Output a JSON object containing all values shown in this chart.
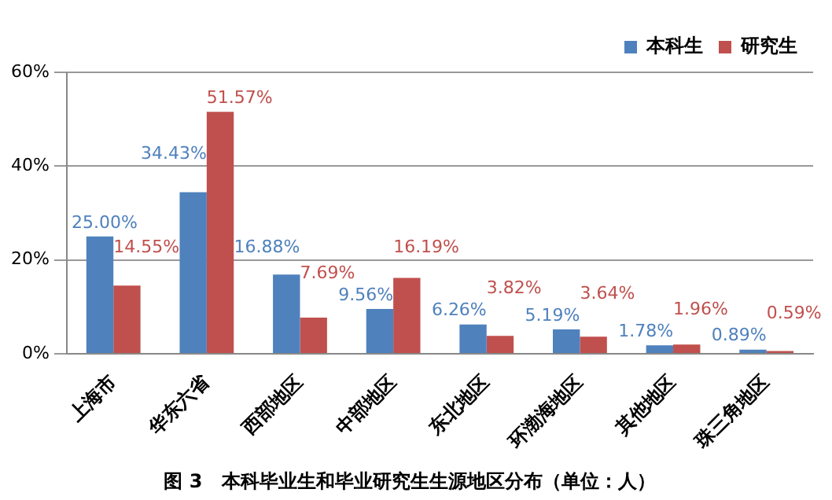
{
  "chart_data": {
    "type": "bar",
    "title": "图 3　本科毕业生和毕业研究生生源地区分布（单位：人）",
    "categories": [
      "上海市",
      "华东六省",
      "西部地区",
      "中部地区",
      "东北地区",
      "环渤海地区",
      "其他地区",
      "珠三角地区"
    ],
    "series": [
      {
        "name": "本科生",
        "color": "#4f81bd",
        "values": [
          25.0,
          34.43,
          16.88,
          9.56,
          6.26,
          5.19,
          1.78,
          0.89
        ],
        "value_labels": [
          "25.00%",
          "34.43%",
          "16.88%",
          "9.56%",
          "6.26%",
          "5.19%",
          "1.78%",
          "0.89%"
        ]
      },
      {
        "name": "研究生",
        "color": "#c0504d",
        "values": [
          14.55,
          51.57,
          7.69,
          16.19,
          3.82,
          3.64,
          1.96,
          0.59
        ],
        "value_labels": [
          "14.55%",
          "51.57%",
          "7.69%",
          "16.19%",
          "3.82%",
          "3.64%",
          "1.96%",
          "0.59%"
        ]
      }
    ],
    "ylim": [
      0,
      60
    ],
    "yticks": [
      {
        "value": 0,
        "label": "0%"
      },
      {
        "value": 20,
        "label": "20%"
      },
      {
        "value": 40,
        "label": "40%"
      },
      {
        "value": 60,
        "label": "60%"
      }
    ],
    "grid": "y",
    "legend": "top right"
  }
}
